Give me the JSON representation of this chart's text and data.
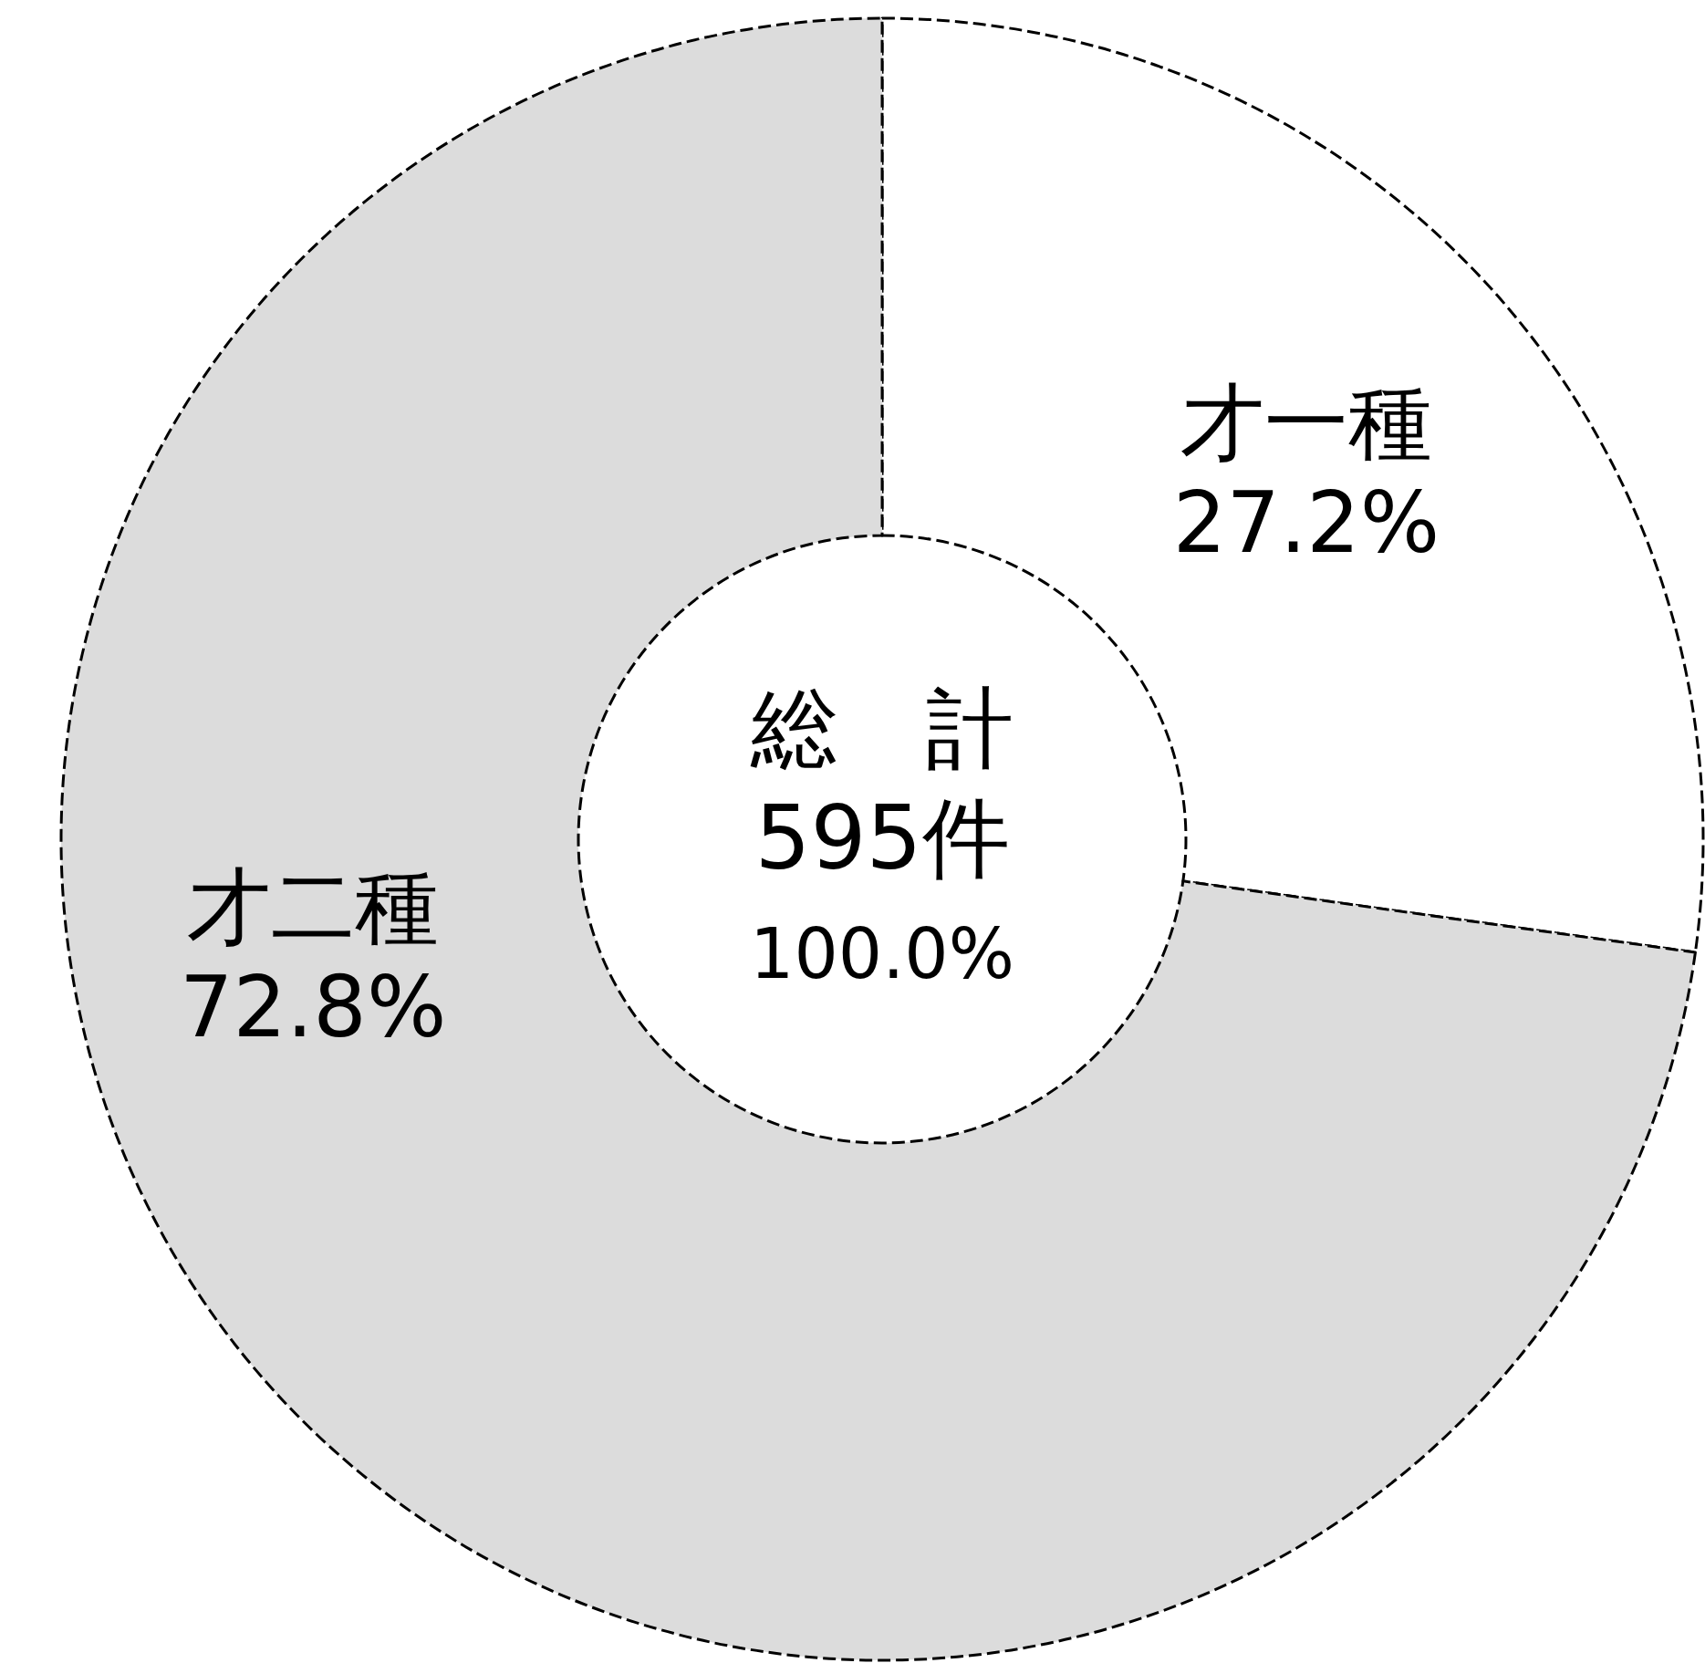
{
  "chart_data": {
    "type": "donut",
    "categories": [
      "才一種",
      "才二種"
    ],
    "values": [
      27.2,
      72.8
    ],
    "colors": [
      "#ffffff",
      "#dcdcdc"
    ],
    "value_labels": [
      "27.2%",
      "72.8%"
    ],
    "annotations": [
      "総　計",
      "595件",
      "100.0%"
    ]
  }
}
